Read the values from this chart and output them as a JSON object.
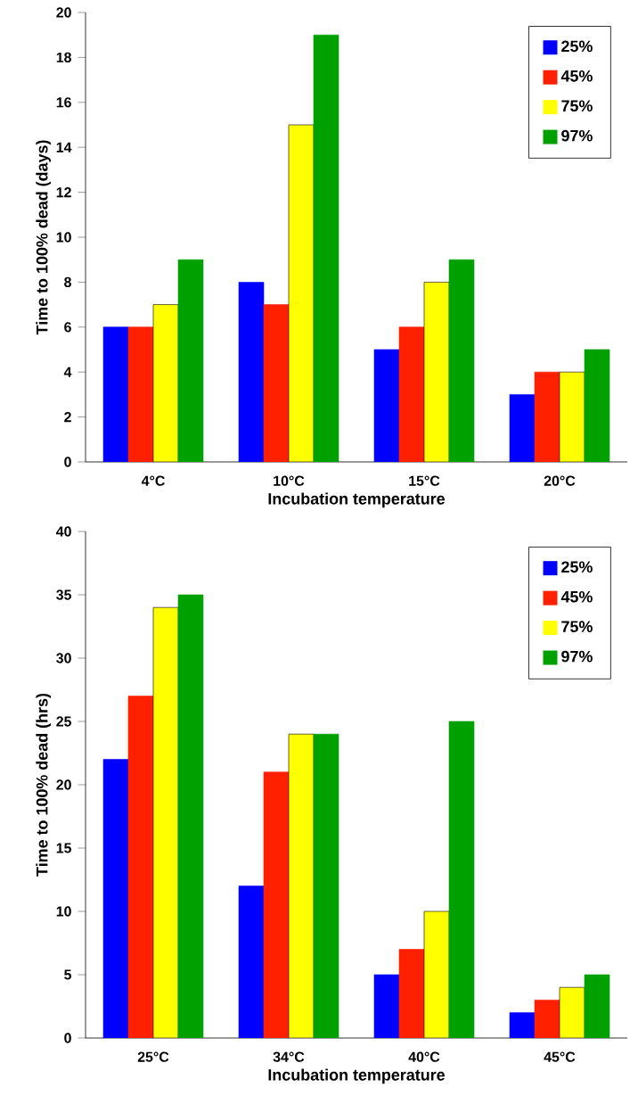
{
  "chart_data": [
    {
      "type": "bar",
      "xlabel": "Incubation temperature",
      "ylabel": "Time to 100% dead (days)",
      "categories": [
        "4°C",
        "10°C",
        "15°C",
        "20°C"
      ],
      "ylim": [
        0,
        20
      ],
      "yticks": [
        0,
        2,
        4,
        6,
        8,
        10,
        12,
        14,
        16,
        18,
        20
      ],
      "legend": "top right",
      "series": [
        {
          "name": "25%",
          "color": "#0000ff",
          "values": [
            6,
            8,
            5,
            3
          ]
        },
        {
          "name": "45%",
          "color": "#ff2000",
          "values": [
            6,
            7,
            6,
            4
          ]
        },
        {
          "name": "75%",
          "color": "#ffff00",
          "values": [
            7,
            15,
            8,
            4
          ]
        },
        {
          "name": "97%",
          "color": "#00a000",
          "values": [
            9,
            19,
            9,
            5
          ]
        }
      ]
    },
    {
      "type": "bar",
      "xlabel": "Incubation temperature",
      "ylabel": "Time to 100% dead (hrs)",
      "categories": [
        "25°C",
        "34°C",
        "40°C",
        "45°C"
      ],
      "ylim": [
        0,
        40
      ],
      "yticks": [
        0,
        5,
        10,
        15,
        20,
        25,
        30,
        35,
        40
      ],
      "legend": "top right",
      "series": [
        {
          "name": "25%",
          "color": "#0000ff",
          "values": [
            22,
            12,
            5,
            2
          ]
        },
        {
          "name": "45%",
          "color": "#ff2000",
          "values": [
            27,
            21,
            7,
            3
          ]
        },
        {
          "name": "75%",
          "color": "#ffff00",
          "values": [
            34,
            24,
            10,
            4
          ]
        },
        {
          "name": "97%",
          "color": "#00a000",
          "values": [
            35,
            24,
            25,
            5
          ]
        }
      ]
    }
  ]
}
